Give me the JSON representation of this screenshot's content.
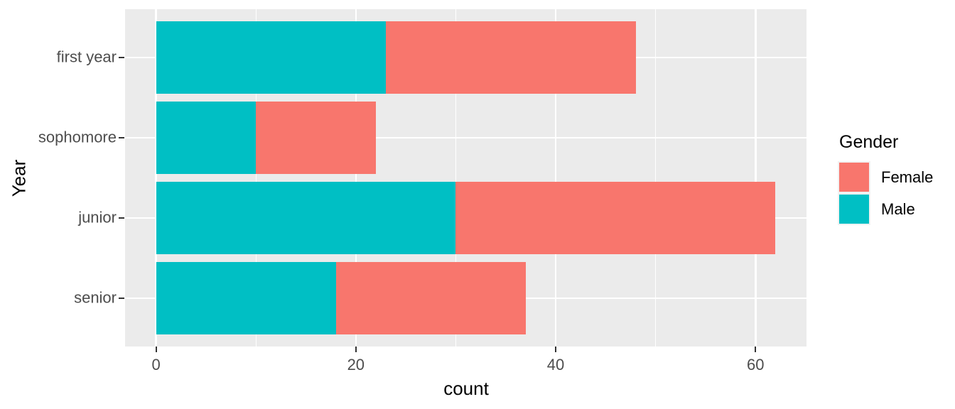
{
  "chart_data": {
    "type": "bar",
    "orientation": "horizontal",
    "stacked": true,
    "title": "",
    "xlabel": "count",
    "ylabel": "Year",
    "categories": [
      "first year",
      "sophomore",
      "junior",
      "senior"
    ],
    "series": [
      {
        "name": "Male",
        "color": "#00BFC4",
        "values": [
          23,
          10,
          30,
          18
        ]
      },
      {
        "name": "Female",
        "color": "#F8766D",
        "values": [
          25,
          12,
          32,
          19
        ]
      }
    ],
    "totals": [
      48,
      22,
      62,
      37
    ],
    "x_ticks": [
      0,
      20,
      40,
      60
    ],
    "x_minor_gridlines": [
      10,
      30,
      50
    ],
    "xlim": [
      -3.1,
      65.1
    ],
    "grid": "on",
    "legend": {
      "title": "Gender",
      "position": "right",
      "entries": [
        {
          "label": "Female",
          "color": "#F8766D"
        },
        {
          "label": "Male",
          "color": "#00BFC4"
        }
      ]
    },
    "colors": {
      "panel_bg": "#EBEBEB",
      "gridline": "#FFFFFF",
      "tick_text": "#4D4D4D",
      "axis_title_text": "#000000",
      "tick_mark": "#333333"
    }
  }
}
